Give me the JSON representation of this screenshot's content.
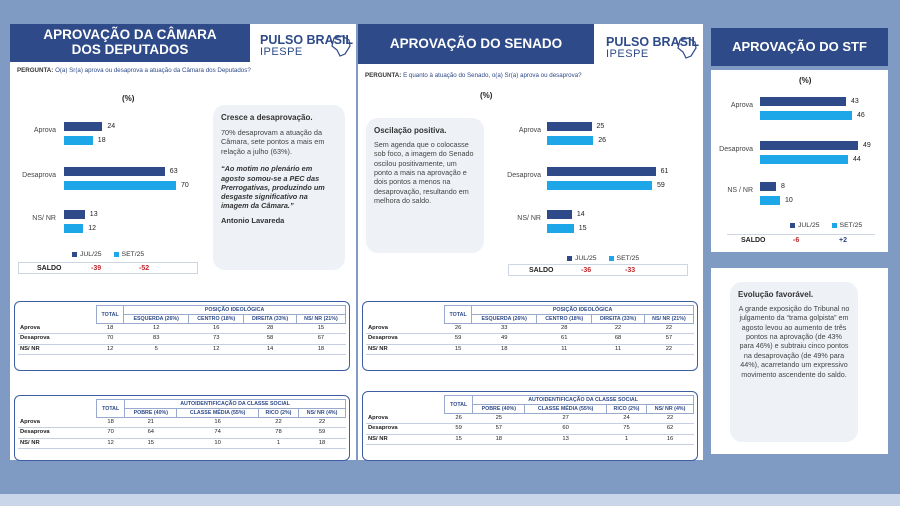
{
  "camara": {
    "title": "APROVAÇÃO DA CÂMARA DOS DEPUTADOS",
    "logo_main": "PULSO BRASIL",
    "logo_sub": "IPESPE",
    "question_label": "PERGUNTA:",
    "question": "O(a) Sr(a) aprova ou desaprova a atuação da Câmara dos Deputados?",
    "pct_label": "(%)",
    "saldo_label": "SALDO",
    "saldo_jul": "-39",
    "saldo_set": "-52",
    "note_title": "Cresce a desaprovação.",
    "note_body": "70% desaprovam a atuação da Câmara, sete pontos a mais em relação a julho (63%).",
    "note_quote": "“Ao motim no plenário em agosto somou-se a PEC das Prerrogativas, produzindo um desgaste significativo na imagem da Câmara.”",
    "note_author": "Antonio Lavareda",
    "ideo_header": "POSIÇÃO IDEOLÓGICA",
    "ideo_cols": [
      "TOTAL",
      "ESQUERDA (26%)",
      "CENTRO (18%)",
      "DIREITA (33%)",
      "NS/ NR (21%)"
    ],
    "ideo_rows": [
      {
        "label": "Aprova",
        "cells": [
          "18",
          "12",
          "16",
          "28",
          "15"
        ]
      },
      {
        "label": "Desaprova",
        "cells": [
          "70",
          "83",
          "73",
          "58",
          "67"
        ]
      },
      {
        "label": "NS/ NR",
        "cells": [
          "12",
          "5",
          "12",
          "14",
          "18"
        ]
      }
    ],
    "class_header": "AUTOIDENTIFICAÇÃO DA CLASSE SOCIAL",
    "class_cols": [
      "TOTAL",
      "POBRE (40%)",
      "CLASSE MÉDIA (55%)",
      "RICO (2%)",
      "NS/ NR (4%)"
    ],
    "class_rows": [
      {
        "label": "Aprova",
        "cells": [
          "18",
          "21",
          "16",
          "22",
          "22"
        ]
      },
      {
        "label": "Desaprova",
        "cells": [
          "70",
          "64",
          "74",
          "78",
          "59"
        ]
      },
      {
        "label": "NS/ NR",
        "cells": [
          "12",
          "15",
          "10",
          "1",
          "18"
        ]
      }
    ]
  },
  "senado": {
    "title": "APROVAÇÃO DO SENADO",
    "logo_main": "PULSO BRASIL",
    "logo_sub": "IPESPE",
    "question_label": "PERGUNTA:",
    "question": "E quanto à atuação do Senado, o(a) Sr(a) aprova ou desaprova?",
    "pct_label": "(%)",
    "saldo_label": "SALDO",
    "saldo_jul": "-36",
    "saldo_set": "-33",
    "note_title": "Oscilação positiva.",
    "note_body": "Sem agenda que o colocasse sob foco, a imagem do Senado oscilou positivamente, um ponto a mais na aprovação e dois pontos a menos na desaprovação, resultando em melhora do saldo.",
    "ideo_header": "POSIÇÃO IDEOLÓGICA",
    "ideo_cols": [
      "TOTAL",
      "ESQUERDA (26%)",
      "CENTRO (18%)",
      "DIREITA (33%)",
      "NS/ NR (21%)"
    ],
    "ideo_rows": [
      {
        "label": "Aprova",
        "cells": [
          "26",
          "33",
          "28",
          "22",
          "22"
        ]
      },
      {
        "label": "Desaprova",
        "cells": [
          "59",
          "49",
          "61",
          "68",
          "57"
        ]
      },
      {
        "label": "NS/ NR",
        "cells": [
          "15",
          "18",
          "11",
          "11",
          "22"
        ]
      }
    ],
    "class_header": "AUTOIDENTIFICAÇÃO DA CLASSE SOCIAL",
    "class_cols": [
      "TOTAL",
      "POBRE (40%)",
      "CLASSE MÉDIA (55%)",
      "RICO (2%)",
      "NS/ NR (4%)"
    ],
    "class_rows": [
      {
        "label": "Aprova",
        "cells": [
          "26",
          "25",
          "27",
          "24",
          "22"
        ]
      },
      {
        "label": "Desaprova",
        "cells": [
          "59",
          "57",
          "60",
          "75",
          "62"
        ]
      },
      {
        "label": "NS/ NR",
        "cells": [
          "15",
          "18",
          "13",
          "1",
          "16"
        ]
      }
    ]
  },
  "stf": {
    "title": "APROVAÇÃO DO STF",
    "pct_label": "(%)",
    "saldo_label": "SALDO",
    "saldo_jul": "-6",
    "saldo_set": "+2",
    "note_title": "Evolução favorável.",
    "note_body": "A grande exposição do Tribunal no julgamento da “trama golpista” em agosto levou ao aumento de três pontos na aprovação (de 43% para 46%) e subtraiu cinco pontos na desaprovação (de 49% para 44%), acarretando um expressivo movimento ascendente do saldo."
  },
  "legend": {
    "jul": "JUL/25",
    "set": "SET/25"
  },
  "colors": {
    "jul": "#2e4a88",
    "set": "#1ea7e8",
    "header": "#2e4a88",
    "negative": "#c0282e"
  },
  "chart_data": [
    {
      "type": "bar",
      "title": "APROVAÇÃO DA CÂMARA DOS DEPUTADOS",
      "ylabel": "(%)",
      "categories": [
        "Aprova",
        "Desaprova",
        "NS/ NR"
      ],
      "series": [
        {
          "name": "JUL/25",
          "values": [
            24,
            63,
            13
          ]
        },
        {
          "name": "SET/25",
          "values": [
            18,
            70,
            12
          ]
        }
      ]
    },
    {
      "type": "bar",
      "title": "APROVAÇÃO DO SENADO",
      "ylabel": "(%)",
      "categories": [
        "Aprova",
        "Desaprova",
        "NS/ NR"
      ],
      "series": [
        {
          "name": "JUL/25",
          "values": [
            25,
            61,
            14
          ]
        },
        {
          "name": "SET/25",
          "values": [
            26,
            59,
            15
          ]
        }
      ]
    },
    {
      "type": "bar",
      "title": "APROVAÇÃO DO STF",
      "ylabel": "(%)",
      "categories": [
        "Aprova",
        "Desaprova",
        "NS / NR"
      ],
      "series": [
        {
          "name": "JUL/25",
          "values": [
            43,
            49,
            8
          ]
        },
        {
          "name": "SET/25",
          "values": [
            46,
            44,
            10
          ]
        }
      ]
    }
  ]
}
